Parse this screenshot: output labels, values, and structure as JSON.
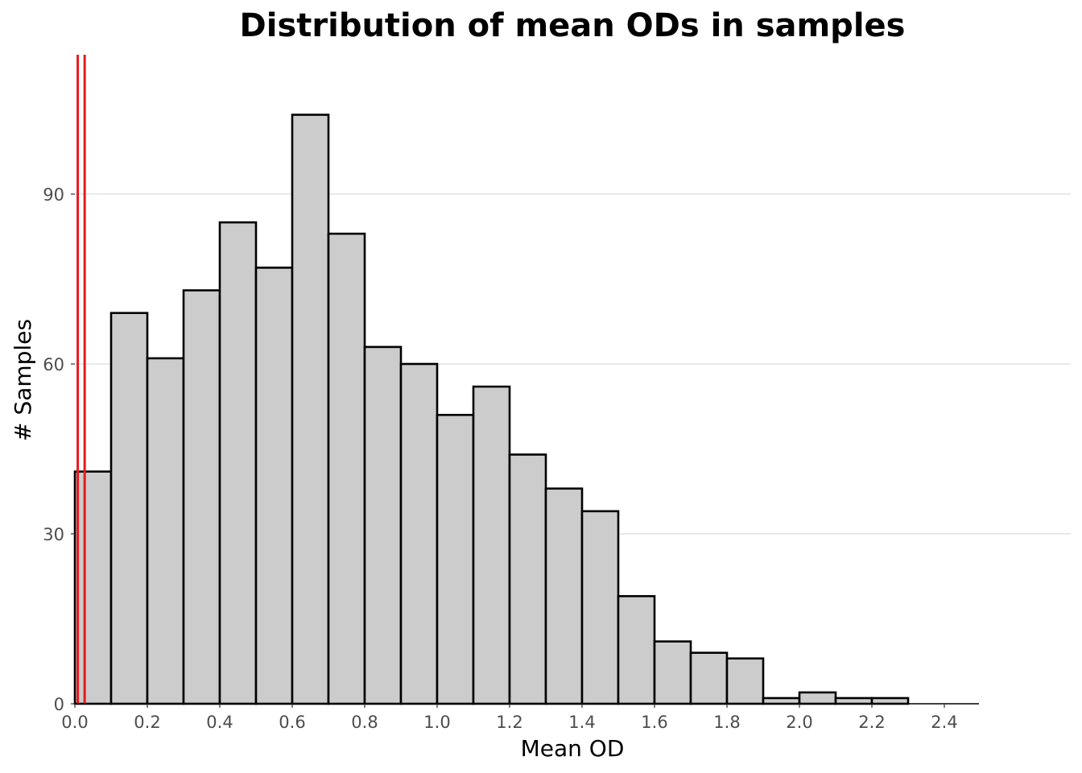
{
  "chart_data": {
    "type": "bar",
    "title": "Distribution of mean ODs in samples",
    "xlabel": "Mean OD",
    "ylabel": "# Samples",
    "bin_width": 0.1,
    "bins": [
      {
        "x0": 0.0,
        "x1": 0.1,
        "count": 41
      },
      {
        "x0": 0.1,
        "x1": 0.2,
        "count": 69
      },
      {
        "x0": 0.2,
        "x1": 0.3,
        "count": 61
      },
      {
        "x0": 0.3,
        "x1": 0.4,
        "count": 73
      },
      {
        "x0": 0.4,
        "x1": 0.5,
        "count": 85
      },
      {
        "x0": 0.5,
        "x1": 0.6,
        "count": 77
      },
      {
        "x0": 0.6,
        "x1": 0.7,
        "count": 104
      },
      {
        "x0": 0.7,
        "x1": 0.8,
        "count": 83
      },
      {
        "x0": 0.8,
        "x1": 0.9,
        "count": 63
      },
      {
        "x0": 0.9,
        "x1": 1.0,
        "count": 60
      },
      {
        "x0": 1.0,
        "x1": 1.1,
        "count": 51
      },
      {
        "x0": 1.1,
        "x1": 1.2,
        "count": 56
      },
      {
        "x0": 1.2,
        "x1": 1.3,
        "count": 44
      },
      {
        "x0": 1.3,
        "x1": 1.4,
        "count": 38
      },
      {
        "x0": 1.4,
        "x1": 1.5,
        "count": 34
      },
      {
        "x0": 1.5,
        "x1": 1.6,
        "count": 19
      },
      {
        "x0": 1.6,
        "x1": 1.7,
        "count": 11
      },
      {
        "x0": 1.7,
        "x1": 1.8,
        "count": 9
      },
      {
        "x0": 1.8,
        "x1": 1.9,
        "count": 8
      },
      {
        "x0": 1.9,
        "x1": 2.0,
        "count": 1
      },
      {
        "x0": 2.0,
        "x1": 2.1,
        "count": 2
      },
      {
        "x0": 2.1,
        "x1": 2.2,
        "count": 1
      },
      {
        "x0": 2.2,
        "x1": 2.3,
        "count": 1
      },
      {
        "x0": 2.3,
        "x1": 2.4,
        "count": 0
      },
      {
        "x0": 2.4,
        "x1": 2.5,
        "count": 0
      }
    ],
    "x_ticks": [
      0.0,
      0.2,
      0.4,
      0.6,
      0.8,
      1.0,
      1.2,
      1.4,
      1.6,
      1.8,
      2.0,
      2.2,
      2.4
    ],
    "x_tick_labels": [
      "0.0",
      "0.2",
      "0.4",
      "0.6",
      "0.8",
      "1.0",
      "1.2",
      "1.4",
      "1.6",
      "1.8",
      "2.0",
      "2.2",
      "2.4"
    ],
    "y_ticks": [
      0,
      30,
      60,
      90
    ],
    "y_tick_labels": [
      "0",
      "30",
      "60",
      "90"
    ],
    "xlim": [
      0.0,
      2.77
    ],
    "ylim": [
      0,
      114
    ],
    "grid": "horizontal",
    "reference_lines": [
      {
        "x": 0.008,
        "color": "#e41a1c"
      },
      {
        "x": 0.027,
        "color": "#e41a1c"
      }
    ],
    "bar_fill": "#cccccc",
    "bar_outline": "#000000"
  }
}
